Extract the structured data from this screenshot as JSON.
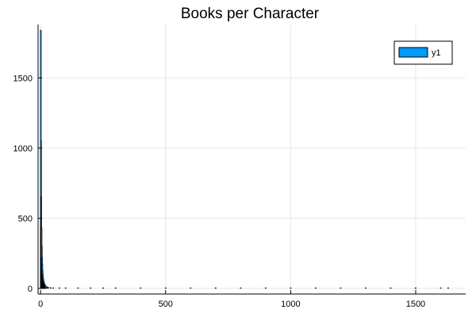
{
  "chart_data": {
    "type": "bar",
    "title": "Books per Character",
    "xlabel": "",
    "ylabel": "",
    "xlim": [
      -10,
      1700
    ],
    "ylim": [
      -40,
      1880
    ],
    "x_ticks": [
      0,
      500,
      1000,
      1500
    ],
    "y_ticks": [
      0,
      500,
      1000,
      1500
    ],
    "x_tick_labels": [
      "0",
      "500",
      "1000",
      "1500"
    ],
    "y_tick_labels": [
      "0",
      "500",
      "1000",
      "1500"
    ],
    "grid": true,
    "legend": {
      "position": "top-right",
      "entries": [
        "y1"
      ]
    },
    "colors": {
      "series": "#009af9",
      "bar_outline": "#000000",
      "axis": "#000000",
      "grid": "#e6e6e6",
      "background": "#ffffff"
    },
    "series": [
      {
        "name": "y1",
        "x": [
          1,
          2,
          3,
          4,
          5,
          6,
          7,
          8,
          9,
          10,
          11,
          12,
          13,
          14,
          15,
          16,
          17,
          18,
          19,
          20,
          25,
          30,
          40,
          50,
          75,
          100,
          150,
          200,
          250,
          300,
          400,
          500,
          600,
          700,
          800,
          900,
          1000,
          1100,
          1200,
          1300,
          1400,
          1500,
          1600,
          1630
        ],
        "values": [
          1840,
          1050,
          650,
          430,
          300,
          220,
          170,
          130,
          100,
          80,
          66,
          55,
          46,
          40,
          34,
          29,
          25,
          22,
          20,
          18,
          12,
          9,
          6,
          4,
          3,
          2,
          1.6,
          1.3,
          1.2,
          1.1,
          1,
          1,
          1,
          1,
          1,
          1,
          1,
          1,
          1,
          1,
          1,
          1,
          1,
          1
        ]
      }
    ]
  }
}
